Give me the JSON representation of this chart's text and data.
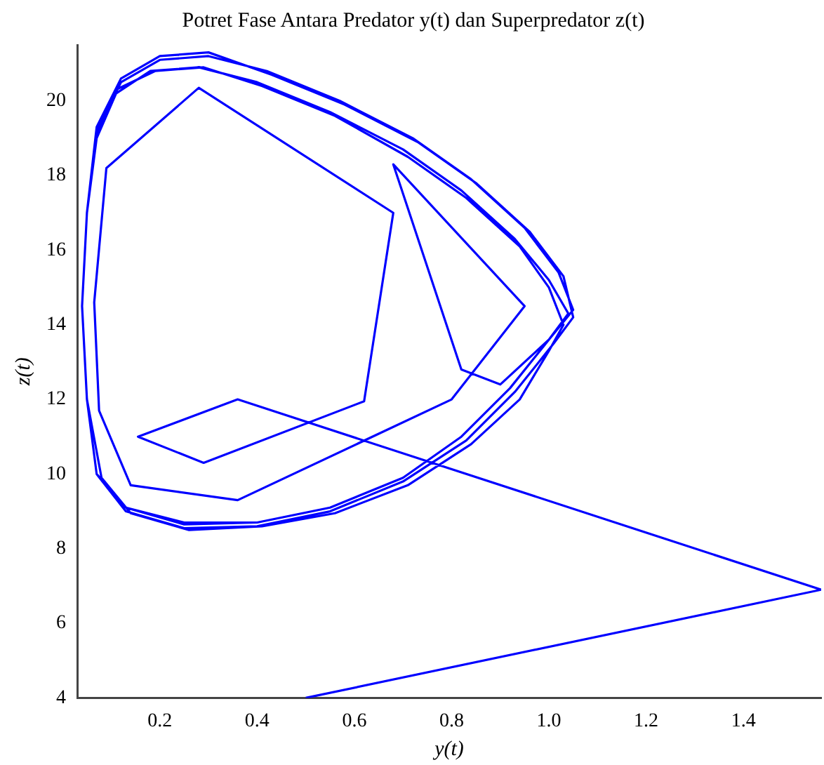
{
  "chart_data": {
    "type": "line",
    "title": "Potret Fase Antara Predator y(t) dan Superpredator z(t)",
    "xlabel": "y(t)",
    "ylabel": "z(t)",
    "xlim": [
      0.03,
      1.56
    ],
    "ylim": [
      4,
      21.5
    ],
    "xticks": [
      0.2,
      0.4,
      0.6,
      0.8,
      {
        "value": 1,
        "label": "1.0"
      },
      1.2,
      1.4
    ],
    "yticks": [
      4,
      6,
      8,
      10,
      12,
      14,
      16,
      18,
      20
    ],
    "grid": false,
    "legend": false,
    "marker": "none",
    "line_style": "solid",
    "series": [
      {
        "color": "#0000ff",
        "x": [
          0.5,
          1.56,
          0.36,
          0.155,
          0.29,
          0.62,
          0.68,
          0.28,
          0.09,
          0.065,
          0.075,
          0.14,
          0.36,
          0.8,
          0.95,
          0.68,
          0.82,
          0.9,
          1.0,
          1.04,
          1.0,
          0.93,
          0.82,
          0.7,
          0.55,
          0.4,
          0.28,
          0.18,
          0.11,
          0.07,
          0.05,
          0.04,
          0.05,
          0.07,
          0.13,
          0.25,
          0.4,
          0.55,
          0.7,
          0.82,
          0.92,
          1.0,
          1.05,
          1.02,
          0.95,
          0.84,
          0.72,
          0.57,
          0.42,
          0.3,
          0.2,
          0.12,
          0.07,
          0.05,
          0.04,
          0.05,
          0.07,
          0.13,
          0.25,
          0.4,
          0.55,
          0.7,
          0.83,
          0.93,
          1.01,
          1.05,
          1.03,
          0.96,
          0.85,
          0.73,
          0.58,
          0.43,
          0.3,
          0.2,
          0.12,
          0.07,
          0.05,
          0.04,
          0.05,
          0.08,
          0.14,
          0.26,
          0.41,
          0.56,
          0.71,
          0.84,
          0.94,
          1.0,
          1.03,
          1.0,
          0.94,
          0.83,
          0.71,
          0.56,
          0.41,
          0.29,
          0.19,
          0.11,
          0.07,
          0.05,
          0.04,
          0.05,
          0.07,
          0.13,
          0.25,
          0.4,
          0.55,
          0.7,
          0.82
        ],
        "values": [
          4,
          6.9,
          12.0,
          11.0,
          10.3,
          11.95,
          17.0,
          20.35,
          18.2,
          14.6,
          11.7,
          9.7,
          9.3,
          12.0,
          14.5,
          18.3,
          12.8,
          12.4,
          13.6,
          14.3,
          15.2,
          16.3,
          17.6,
          18.7,
          19.7,
          20.5,
          20.9,
          20.8,
          20.2,
          19.0,
          17.0,
          14.5,
          12.0,
          10.0,
          9.1,
          8.7,
          8.7,
          9.1,
          9.9,
          11.0,
          12.3,
          13.6,
          14.4,
          15.4,
          16.6,
          17.9,
          19.0,
          20.0,
          20.8,
          21.2,
          21.1,
          20.5,
          19.2,
          17.0,
          14.5,
          12.0,
          10.0,
          9.0,
          8.55,
          8.6,
          9.0,
          9.8,
          10.9,
          12.2,
          13.5,
          14.2,
          15.3,
          16.5,
          17.8,
          18.9,
          19.9,
          20.7,
          21.3,
          21.2,
          20.6,
          19.3,
          17.0,
          14.5,
          12.0,
          9.9,
          8.95,
          8.5,
          8.6,
          8.95,
          9.7,
          10.8,
          12.0,
          13.3,
          14.0,
          15.0,
          16.1,
          17.4,
          18.5,
          19.6,
          20.4,
          20.9,
          20.8,
          20.3,
          19.1,
          17.0,
          14.5,
          12.0,
          10.0,
          9.1,
          8.65,
          8.7,
          9.1,
          9.9,
          11.0
        ]
      }
    ]
  }
}
